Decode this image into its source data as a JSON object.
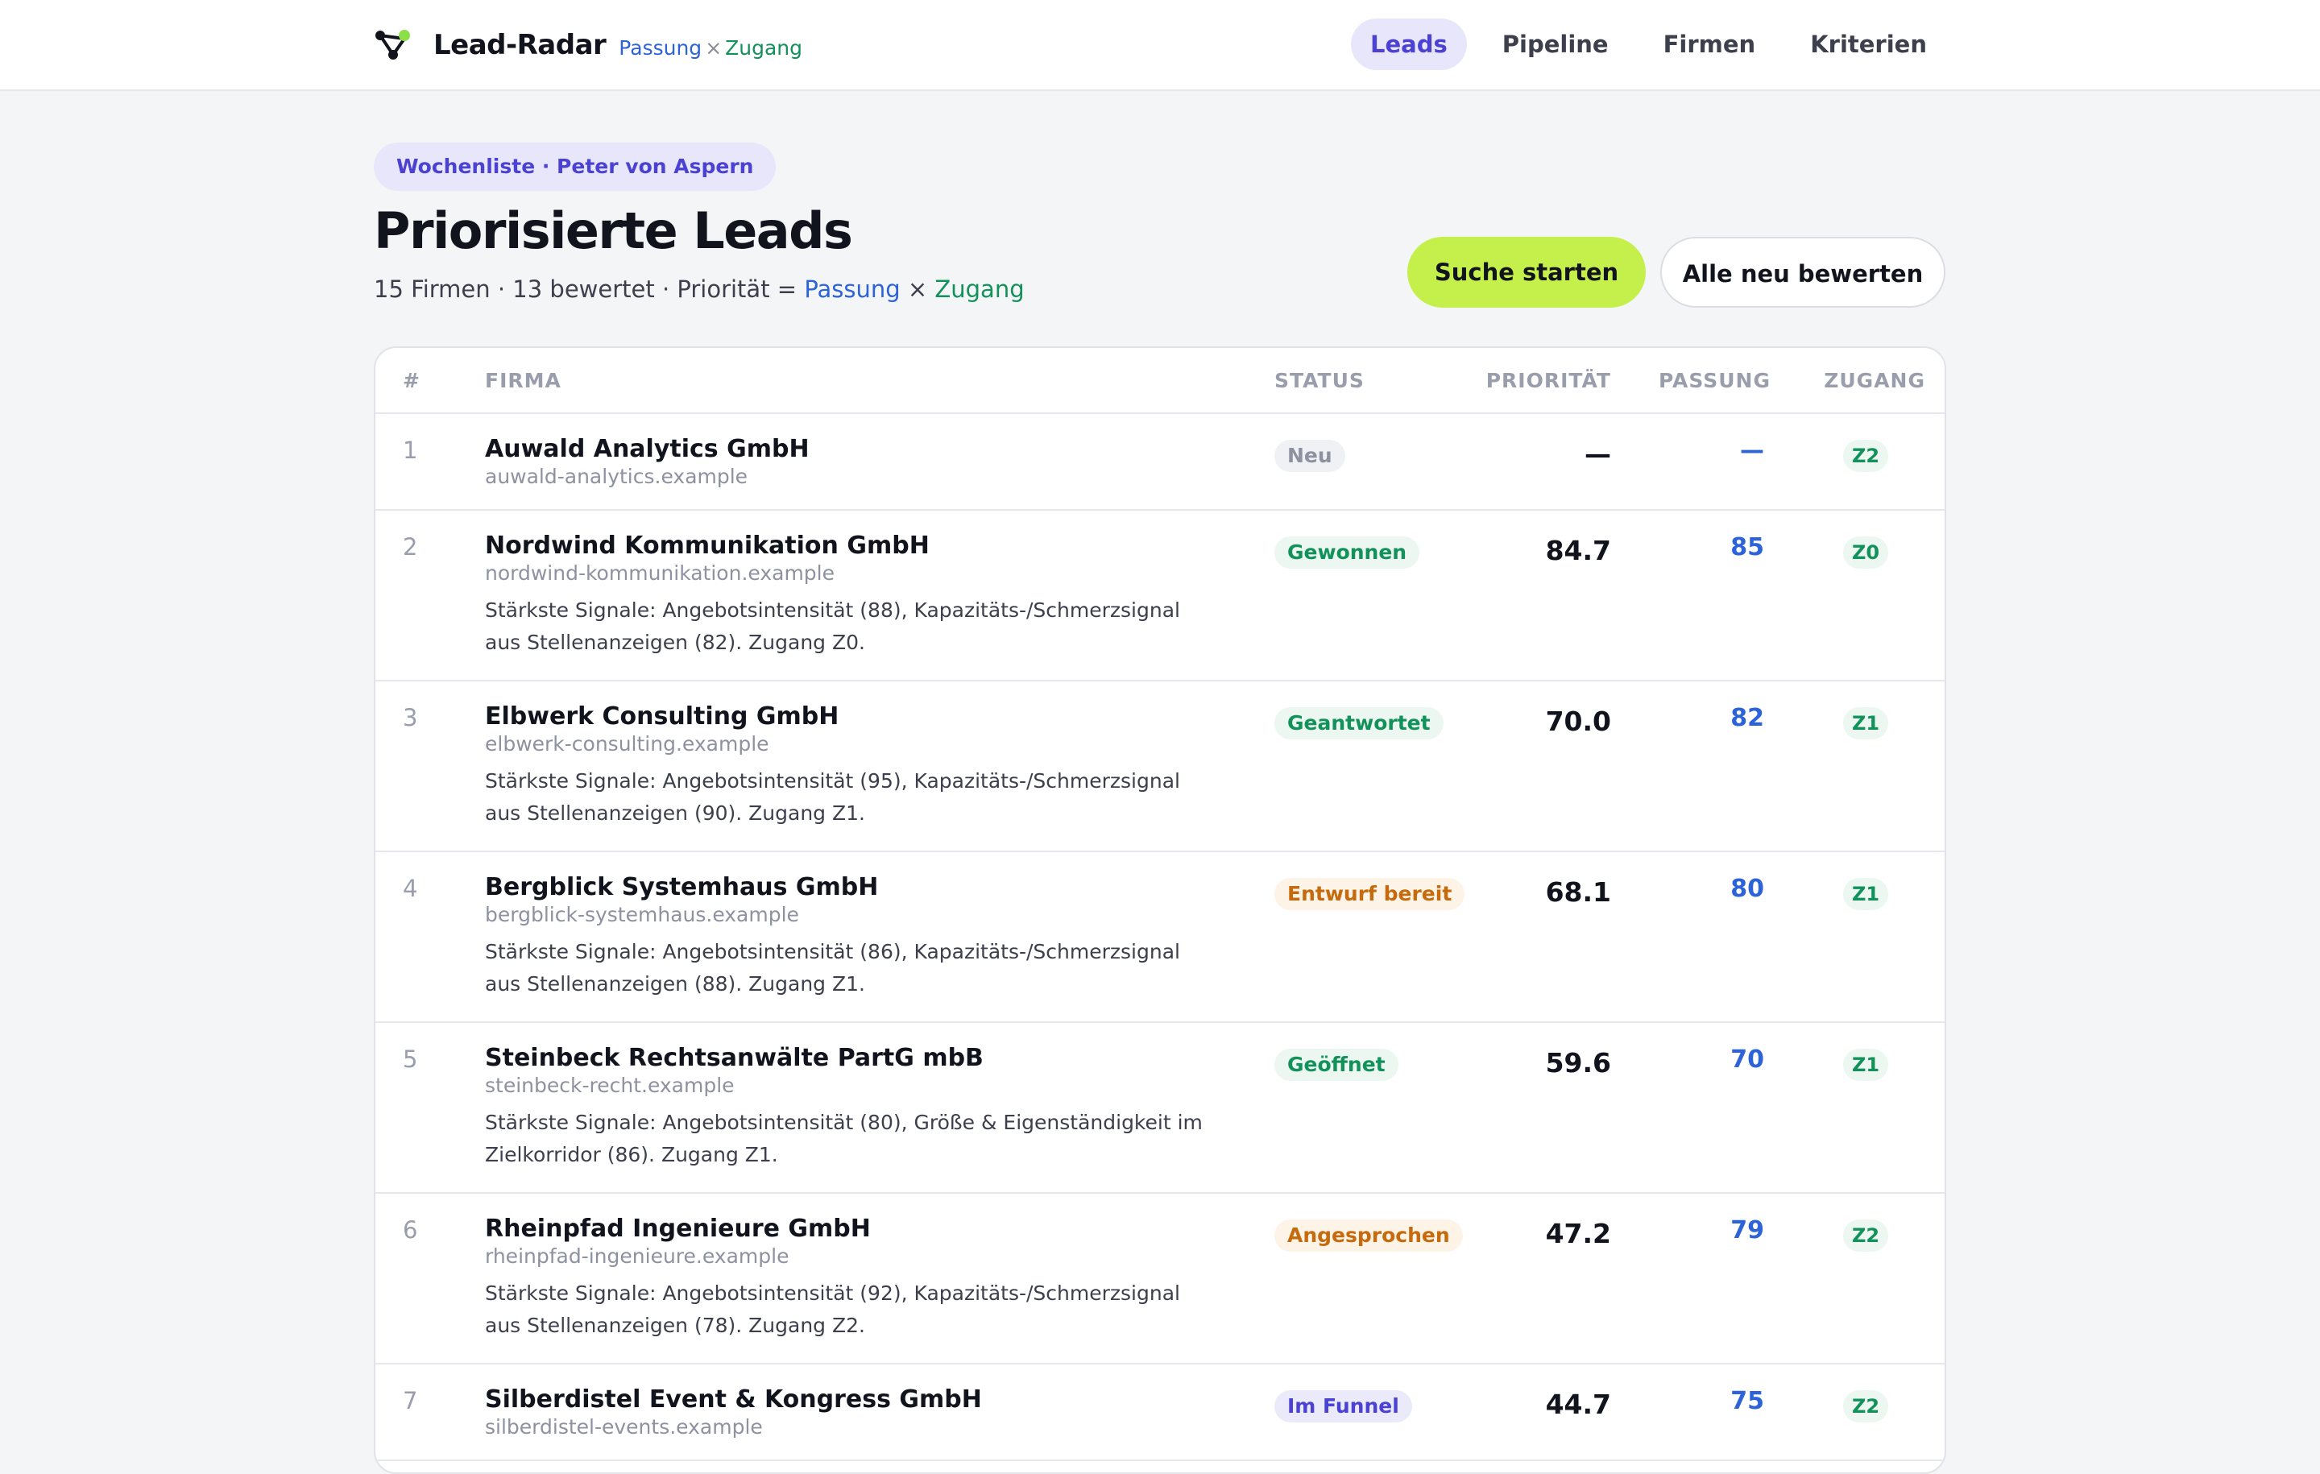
{
  "brand": {
    "name": "Lead-Radar",
    "tag_fit": "Passung",
    "tag_x": "×",
    "tag_access": "Zugang",
    "logo_icon": "network-nodes-icon"
  },
  "nav": [
    {
      "label": "Leads",
      "active": true
    },
    {
      "label": "Pipeline",
      "active": false
    },
    {
      "label": "Firmen",
      "active": false
    },
    {
      "label": "Kriterien",
      "active": false
    }
  ],
  "header": {
    "pill": "Wochenliste · Peter von Aspern",
    "title": "Priorisierte Leads",
    "subtitle_prefix": "15 Firmen · 13 bewertet · Priorität = ",
    "subtitle_fit": "Passung",
    "subtitle_x": " × ",
    "subtitle_access": "Zugang"
  },
  "actions": {
    "primary": "Suche starten",
    "secondary": "Alle neu bewerten"
  },
  "table": {
    "columns": {
      "num": "#",
      "firm": "FIRMA",
      "status": "STATUS",
      "priority": "PRIORITÄT",
      "fit": "PASSUNG",
      "access": "ZUGANG"
    },
    "rows": [
      {
        "num": "1",
        "name": "Auwald Analytics GmbH",
        "domain": "auwald-analytics.example",
        "signals": "",
        "status": "Neu",
        "status_kind": "neu",
        "priority": "—",
        "fit": "—",
        "access": "Z2"
      },
      {
        "num": "2",
        "name": "Nordwind Kommunikation GmbH",
        "domain": "nordwind-kommunikation.example",
        "signals": "Stärkste Signale: Angebotsintensität (88), Kapazitäts-/Schmerzsignal aus Stellenanzeigen (82). Zugang Z0.",
        "status": "Gewonnen",
        "status_kind": "green",
        "priority": "84.7",
        "fit": "85",
        "access": "Z0"
      },
      {
        "num": "3",
        "name": "Elbwerk Consulting GmbH",
        "domain": "elbwerk-consulting.example",
        "signals": "Stärkste Signale: Angebotsintensität (95), Kapazitäts-/Schmerzsignal aus Stellenanzeigen (90). Zugang Z1.",
        "status": "Geantwortet",
        "status_kind": "green",
        "priority": "70.0",
        "fit": "82",
        "access": "Z1"
      },
      {
        "num": "4",
        "name": "Bergblick Systemhaus GmbH",
        "domain": "bergblick-systemhaus.example",
        "signals": "Stärkste Signale: Angebotsintensität (86), Kapazitäts-/Schmerzsignal aus Stellenanzeigen (88). Zugang Z1.",
        "status": "Entwurf bereit",
        "status_kind": "orange",
        "priority": "68.1",
        "fit": "80",
        "access": "Z1"
      },
      {
        "num": "5",
        "name": "Steinbeck Rechtsanwälte PartG mbB",
        "domain": "steinbeck-recht.example",
        "signals": "Stärkste Signale: Angebotsintensität (80), Größe & Eigenständigkeit im Zielkorridor (86). Zugang Z1.",
        "status": "Geöffnet",
        "status_kind": "green",
        "priority": "59.6",
        "fit": "70",
        "access": "Z1"
      },
      {
        "num": "6",
        "name": "Rheinpfad Ingenieure GmbH",
        "domain": "rheinpfad-ingenieure.example",
        "signals": "Stärkste Signale: Angebotsintensität (92), Kapazitäts-/Schmerzsignal aus Stellenanzeigen (78). Zugang Z2.",
        "status": "Angesprochen",
        "status_kind": "orange",
        "priority": "47.2",
        "fit": "79",
        "access": "Z2"
      },
      {
        "num": "7",
        "name": "Silberdistel Event & Kongress GmbH",
        "domain": "silberdistel-events.example",
        "signals": "",
        "status": "Im Funnel",
        "status_kind": "purple",
        "priority": "44.7",
        "fit": "75",
        "access": "Z2"
      }
    ]
  }
}
